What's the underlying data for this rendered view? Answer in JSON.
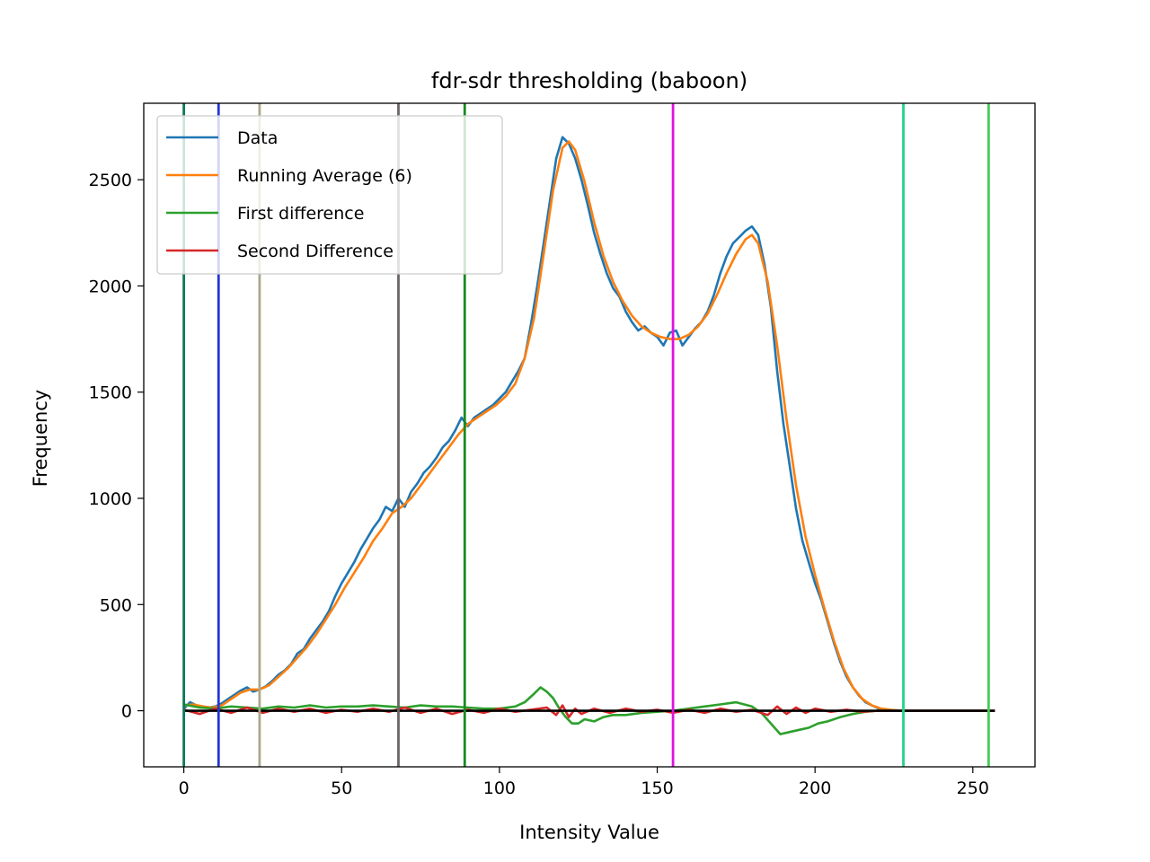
{
  "chart_data": {
    "type": "line",
    "title": "fdr-sdr thresholding (baboon)",
    "xlabel": "Intensity Value",
    "ylabel": "Frequency",
    "xlim": [
      -12.7,
      269.7
    ],
    "ylim": [
      -264,
      2860
    ],
    "xticks": [
      0,
      50,
      100,
      150,
      200,
      250
    ],
    "yticks": [
      0,
      500,
      1000,
      1500,
      2000,
      2500
    ],
    "legend_position": "upper-left",
    "grid": false,
    "zero_line_color": "#000000",
    "threshold_lines": [
      {
        "x": 0,
        "color": "#0a7a57"
      },
      {
        "x": 11,
        "color": "#2436d4"
      },
      {
        "x": 24,
        "color": "#aaa88a"
      },
      {
        "x": 68,
        "color": "#6b6566"
      },
      {
        "x": 89,
        "color": "#188a20"
      },
      {
        "x": 155,
        "color": "#e012e0"
      },
      {
        "x": 228,
        "color": "#22d48a"
      },
      {
        "x": 255,
        "color": "#44cc55"
      }
    ],
    "series": [
      {
        "name": "Data",
        "color": "#1f77b4",
        "points": [
          [
            0,
            10
          ],
          [
            2,
            40
          ],
          [
            4,
            25
          ],
          [
            6,
            20
          ],
          [
            8,
            15
          ],
          [
            10,
            20
          ],
          [
            12,
            35
          ],
          [
            14,
            55
          ],
          [
            16,
            75
          ],
          [
            18,
            95
          ],
          [
            20,
            110
          ],
          [
            22,
            90
          ],
          [
            24,
            100
          ],
          [
            26,
            115
          ],
          [
            28,
            140
          ],
          [
            30,
            170
          ],
          [
            32,
            190
          ],
          [
            34,
            220
          ],
          [
            36,
            270
          ],
          [
            38,
            290
          ],
          [
            40,
            340
          ],
          [
            42,
            380
          ],
          [
            44,
            420
          ],
          [
            46,
            470
          ],
          [
            48,
            540
          ],
          [
            50,
            600
          ],
          [
            52,
            650
          ],
          [
            54,
            700
          ],
          [
            56,
            760
          ],
          [
            58,
            810
          ],
          [
            60,
            860
          ],
          [
            62,
            900
          ],
          [
            64,
            960
          ],
          [
            66,
            940
          ],
          [
            68,
            1000
          ],
          [
            70,
            960
          ],
          [
            72,
            1030
          ],
          [
            74,
            1070
          ],
          [
            76,
            1120
          ],
          [
            78,
            1150
          ],
          [
            80,
            1190
          ],
          [
            82,
            1240
          ],
          [
            84,
            1270
          ],
          [
            86,
            1320
          ],
          [
            88,
            1380
          ],
          [
            90,
            1340
          ],
          [
            92,
            1380
          ],
          [
            94,
            1400
          ],
          [
            96,
            1420
          ],
          [
            98,
            1440
          ],
          [
            100,
            1470
          ],
          [
            102,
            1500
          ],
          [
            104,
            1550
          ],
          [
            106,
            1600
          ],
          [
            108,
            1660
          ],
          [
            110,
            1820
          ],
          [
            112,
            2000
          ],
          [
            114,
            2200
          ],
          [
            116,
            2400
          ],
          [
            118,
            2600
          ],
          [
            120,
            2700
          ],
          [
            122,
            2670
          ],
          [
            124,
            2600
          ],
          [
            126,
            2500
          ],
          [
            128,
            2380
          ],
          [
            130,
            2250
          ],
          [
            132,
            2150
          ],
          [
            134,
            2060
          ],
          [
            136,
            1990
          ],
          [
            138,
            1950
          ],
          [
            140,
            1880
          ],
          [
            142,
            1830
          ],
          [
            144,
            1790
          ],
          [
            146,
            1810
          ],
          [
            148,
            1780
          ],
          [
            150,
            1760
          ],
          [
            152,
            1720
          ],
          [
            154,
            1780
          ],
          [
            156,
            1790
          ],
          [
            158,
            1720
          ],
          [
            160,
            1760
          ],
          [
            162,
            1800
          ],
          [
            164,
            1830
          ],
          [
            166,
            1880
          ],
          [
            168,
            1960
          ],
          [
            170,
            2060
          ],
          [
            172,
            2140
          ],
          [
            174,
            2200
          ],
          [
            176,
            2230
          ],
          [
            178,
            2260
          ],
          [
            180,
            2280
          ],
          [
            182,
            2240
          ],
          [
            184,
            2100
          ],
          [
            186,
            1900
          ],
          [
            188,
            1600
          ],
          [
            190,
            1350
          ],
          [
            192,
            1150
          ],
          [
            194,
            950
          ],
          [
            196,
            800
          ],
          [
            198,
            700
          ],
          [
            200,
            600
          ],
          [
            202,
            520
          ],
          [
            204,
            420
          ],
          [
            206,
            320
          ],
          [
            208,
            230
          ],
          [
            210,
            160
          ],
          [
            212,
            110
          ],
          [
            214,
            70
          ],
          [
            216,
            40
          ],
          [
            218,
            25
          ],
          [
            220,
            12
          ],
          [
            222,
            6
          ],
          [
            224,
            3
          ],
          [
            226,
            1
          ],
          [
            228,
            0
          ],
          [
            232,
            0
          ],
          [
            240,
            0
          ],
          [
            250,
            0
          ],
          [
            255,
            0
          ]
        ]
      },
      {
        "name": "Running Average (6)",
        "color": "#ff7f0e",
        "points": [
          [
            0,
            25
          ],
          [
            3,
            30
          ],
          [
            6,
            20
          ],
          [
            9,
            15
          ],
          [
            12,
            25
          ],
          [
            15,
            55
          ],
          [
            18,
            85
          ],
          [
            21,
            100
          ],
          [
            24,
            100
          ],
          [
            27,
            120
          ],
          [
            30,
            160
          ],
          [
            33,
            200
          ],
          [
            36,
            250
          ],
          [
            39,
            300
          ],
          [
            42,
            360
          ],
          [
            45,
            430
          ],
          [
            48,
            500
          ],
          [
            51,
            580
          ],
          [
            54,
            650
          ],
          [
            57,
            720
          ],
          [
            60,
            800
          ],
          [
            63,
            860
          ],
          [
            66,
            930
          ],
          [
            69,
            960
          ],
          [
            72,
            1000
          ],
          [
            75,
            1060
          ],
          [
            78,
            1120
          ],
          [
            81,
            1180
          ],
          [
            84,
            1240
          ],
          [
            87,
            1300
          ],
          [
            90,
            1350
          ],
          [
            93,
            1380
          ],
          [
            96,
            1410
          ],
          [
            99,
            1440
          ],
          [
            102,
            1480
          ],
          [
            105,
            1540
          ],
          [
            108,
            1660
          ],
          [
            111,
            1850
          ],
          [
            114,
            2150
          ],
          [
            117,
            2450
          ],
          [
            120,
            2650
          ],
          [
            122,
            2680
          ],
          [
            124,
            2640
          ],
          [
            127,
            2490
          ],
          [
            130,
            2300
          ],
          [
            133,
            2140
          ],
          [
            136,
            2020
          ],
          [
            139,
            1930
          ],
          [
            142,
            1860
          ],
          [
            145,
            1810
          ],
          [
            148,
            1780
          ],
          [
            151,
            1760
          ],
          [
            154,
            1750
          ],
          [
            157,
            1750
          ],
          [
            160,
            1770
          ],
          [
            163,
            1810
          ],
          [
            166,
            1870
          ],
          [
            169,
            1960
          ],
          [
            172,
            2060
          ],
          [
            175,
            2150
          ],
          [
            178,
            2220
          ],
          [
            180,
            2240
          ],
          [
            182,
            2200
          ],
          [
            185,
            2020
          ],
          [
            188,
            1720
          ],
          [
            191,
            1370
          ],
          [
            194,
            1060
          ],
          [
            197,
            820
          ],
          [
            200,
            640
          ],
          [
            203,
            480
          ],
          [
            206,
            330
          ],
          [
            209,
            200
          ],
          [
            212,
            110
          ],
          [
            215,
            55
          ],
          [
            218,
            25
          ],
          [
            221,
            10
          ],
          [
            224,
            4
          ],
          [
            228,
            0
          ],
          [
            235,
            0
          ],
          [
            245,
            0
          ],
          [
            255,
            0
          ]
        ]
      },
      {
        "name": "First difference",
        "color": "#2ca02c",
        "points": [
          [
            0,
            30
          ],
          [
            5,
            15
          ],
          [
            10,
            10
          ],
          [
            15,
            20
          ],
          [
            20,
            15
          ],
          [
            25,
            10
          ],
          [
            30,
            20
          ],
          [
            35,
            15
          ],
          [
            40,
            25
          ],
          [
            45,
            15
          ],
          [
            50,
            20
          ],
          [
            55,
            20
          ],
          [
            60,
            25
          ],
          [
            65,
            20
          ],
          [
            70,
            15
          ],
          [
            75,
            25
          ],
          [
            80,
            20
          ],
          [
            85,
            20
          ],
          [
            90,
            15
          ],
          [
            95,
            10
          ],
          [
            100,
            10
          ],
          [
            105,
            20
          ],
          [
            108,
            40
          ],
          [
            111,
            80
          ],
          [
            113,
            110
          ],
          [
            115,
            90
          ],
          [
            117,
            60
          ],
          [
            119,
            10
          ],
          [
            121,
            -30
          ],
          [
            123,
            -60
          ],
          [
            125,
            -60
          ],
          [
            127,
            -40
          ],
          [
            130,
            -50
          ],
          [
            133,
            -30
          ],
          [
            136,
            -20
          ],
          [
            140,
            -20
          ],
          [
            145,
            -10
          ],
          [
            150,
            -5
          ],
          [
            155,
            0
          ],
          [
            160,
            10
          ],
          [
            165,
            20
          ],
          [
            170,
            30
          ],
          [
            175,
            40
          ],
          [
            180,
            20
          ],
          [
            183,
            -10
          ],
          [
            186,
            -60
          ],
          [
            189,
            -110
          ],
          [
            192,
            -100
          ],
          [
            195,
            -90
          ],
          [
            198,
            -80
          ],
          [
            201,
            -60
          ],
          [
            204,
            -50
          ],
          [
            208,
            -30
          ],
          [
            212,
            -15
          ],
          [
            216,
            -5
          ],
          [
            220,
            0
          ],
          [
            225,
            0
          ],
          [
            235,
            0
          ],
          [
            245,
            0
          ],
          [
            255,
            0
          ]
        ]
      },
      {
        "name": "Second Difference",
        "color": "#d62728",
        "points": [
          [
            0,
            5
          ],
          [
            5,
            -15
          ],
          [
            10,
            10
          ],
          [
            15,
            -10
          ],
          [
            20,
            15
          ],
          [
            25,
            -10
          ],
          [
            30,
            10
          ],
          [
            35,
            -5
          ],
          [
            40,
            10
          ],
          [
            45,
            -10
          ],
          [
            50,
            5
          ],
          [
            55,
            -5
          ],
          [
            60,
            10
          ],
          [
            65,
            -5
          ],
          [
            70,
            15
          ],
          [
            75,
            -10
          ],
          [
            80,
            10
          ],
          [
            85,
            -15
          ],
          [
            90,
            5
          ],
          [
            95,
            -10
          ],
          [
            100,
            10
          ],
          [
            105,
            -5
          ],
          [
            110,
            5
          ],
          [
            115,
            15
          ],
          [
            118,
            -20
          ],
          [
            120,
            25
          ],
          [
            122,
            -30
          ],
          [
            124,
            10
          ],
          [
            126,
            -15
          ],
          [
            130,
            10
          ],
          [
            135,
            -10
          ],
          [
            140,
            10
          ],
          [
            145,
            -5
          ],
          [
            150,
            5
          ],
          [
            155,
            -10
          ],
          [
            160,
            5
          ],
          [
            165,
            -10
          ],
          [
            170,
            10
          ],
          [
            175,
            -5
          ],
          [
            180,
            5
          ],
          [
            185,
            -20
          ],
          [
            188,
            20
          ],
          [
            191,
            -15
          ],
          [
            194,
            15
          ],
          [
            197,
            -10
          ],
          [
            200,
            10
          ],
          [
            205,
            -5
          ],
          [
            210,
            5
          ],
          [
            215,
            -5
          ],
          [
            220,
            0
          ],
          [
            230,
            0
          ],
          [
            245,
            0
          ],
          [
            257,
            0
          ]
        ]
      }
    ]
  }
}
